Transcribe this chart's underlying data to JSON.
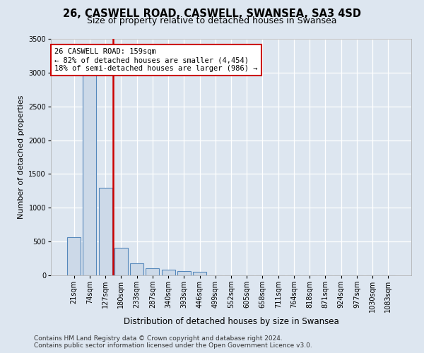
{
  "title": "26, CASWELL ROAD, CASWELL, SWANSEA, SA3 4SD",
  "subtitle": "Size of property relative to detached houses in Swansea",
  "xlabel": "Distribution of detached houses by size in Swansea",
  "ylabel": "Number of detached properties",
  "categories": [
    "21sqm",
    "74sqm",
    "127sqm",
    "180sqm",
    "233sqm",
    "287sqm",
    "340sqm",
    "393sqm",
    "446sqm",
    "499sqm",
    "552sqm",
    "605sqm",
    "658sqm",
    "711sqm",
    "764sqm",
    "818sqm",
    "871sqm",
    "924sqm",
    "977sqm",
    "1030sqm",
    "1083sqm"
  ],
  "values": [
    560,
    2970,
    1300,
    410,
    175,
    100,
    80,
    65,
    55,
    0,
    0,
    0,
    0,
    0,
    0,
    0,
    0,
    0,
    0,
    0,
    0
  ],
  "bar_color": "#ccd9e8",
  "bar_edge_color": "#5588bb",
  "vline_color": "#cc0000",
  "vline_x": 2.5,
  "annotation_line1": "26 CASWELL ROAD: 159sqm",
  "annotation_line2": "← 82% of detached houses are smaller (4,454)",
  "annotation_line3": "18% of semi-detached houses are larger (986) →",
  "annotation_box_facecolor": "#ffffff",
  "annotation_box_edgecolor": "#cc0000",
  "ylim": [
    0,
    3500
  ],
  "yticks": [
    0,
    500,
    1000,
    1500,
    2000,
    2500,
    3000,
    3500
  ],
  "background_color": "#dde6f0",
  "grid_color": "#ffffff",
  "footer_line1": "Contains HM Land Registry data © Crown copyright and database right 2024.",
  "footer_line2": "Contains public sector information licensed under the Open Government Licence v3.0.",
  "title_fontsize": 10.5,
  "subtitle_fontsize": 9,
  "xlabel_fontsize": 8.5,
  "ylabel_fontsize": 8,
  "tick_fontsize": 7,
  "annot_fontsize": 7.5,
  "footer_fontsize": 6.5
}
